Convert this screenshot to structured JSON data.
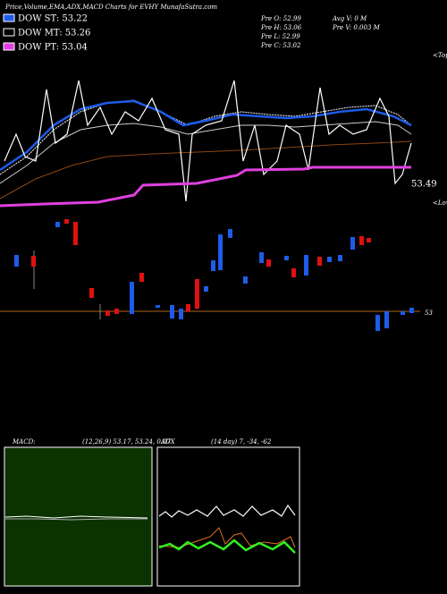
{
  "header": {
    "title": "Price,Volume,EMA,ADX,MACD Charts for EVHY MunafaSutra.com"
  },
  "legend": [
    {
      "label": "DOW ST: 53.22"
    },
    {
      "label": "DOW MT: 53.26"
    },
    {
      "label": "DOW PT: 53.04"
    }
  ],
  "info": {
    "left": [
      "Pre O: 52.99",
      "Pre H: 53.06",
      "Pre L: 52.99",
      "Pre C: 53.02"
    ],
    "right": [
      "Avg V: 0 M",
      "Pre V: 0.003 M"
    ]
  },
  "price_panel": {
    "tops": "<Tops",
    "lows": "<Lows",
    "last_ema": "53.49",
    "level": "53"
  },
  "macd_panel": {
    "label": "MACD:",
    "params": "(12,26,9) 53.17, 53.24, 0.07"
  },
  "adx_panel": {
    "label": "ADX",
    "params": "(14 day) 7, -34, -62"
  }
}
